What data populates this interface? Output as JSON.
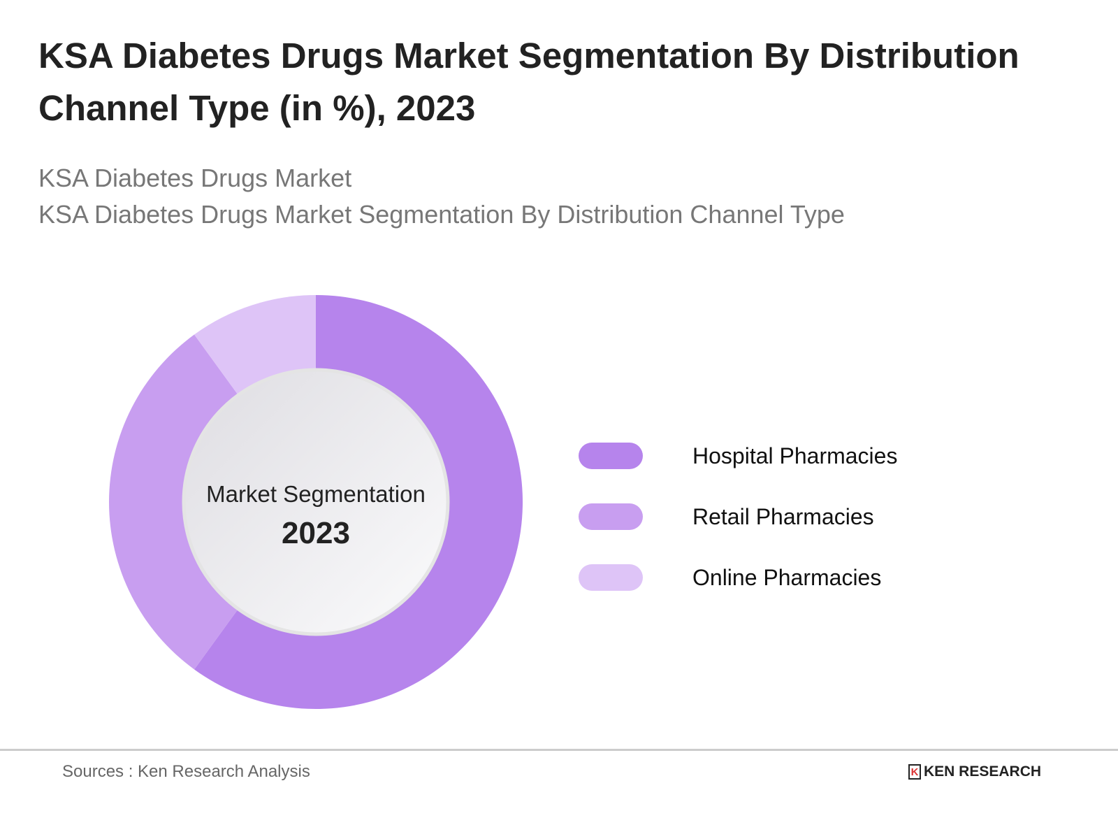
{
  "title": "KSA Diabetes Drugs Market Segmentation By Distribution Channel Type (in %), 2023",
  "subtitle_1": "KSA Diabetes Drugs Market",
  "subtitle_2": "KSA Diabetes Drugs Market Segmentation By Distribution Channel Type",
  "center": {
    "label": "Market Segmentation",
    "year": "2023"
  },
  "source": "Sources : Ken Research Analysis",
  "logo_text": "KEN RESEARCH",
  "chart_data": {
    "type": "pie",
    "donut": true,
    "title": "KSA Diabetes Drugs Market Segmentation By Distribution Channel Type (in %), 2023",
    "categories": [
      "Hospital Pharmacies",
      "Retail Pharmacies",
      "Online Pharmacies"
    ],
    "values": [
      60,
      30,
      10
    ],
    "colors": [
      "#b684ec",
      "#c89ef0",
      "#dec4f7"
    ],
    "legend_position": "right"
  }
}
